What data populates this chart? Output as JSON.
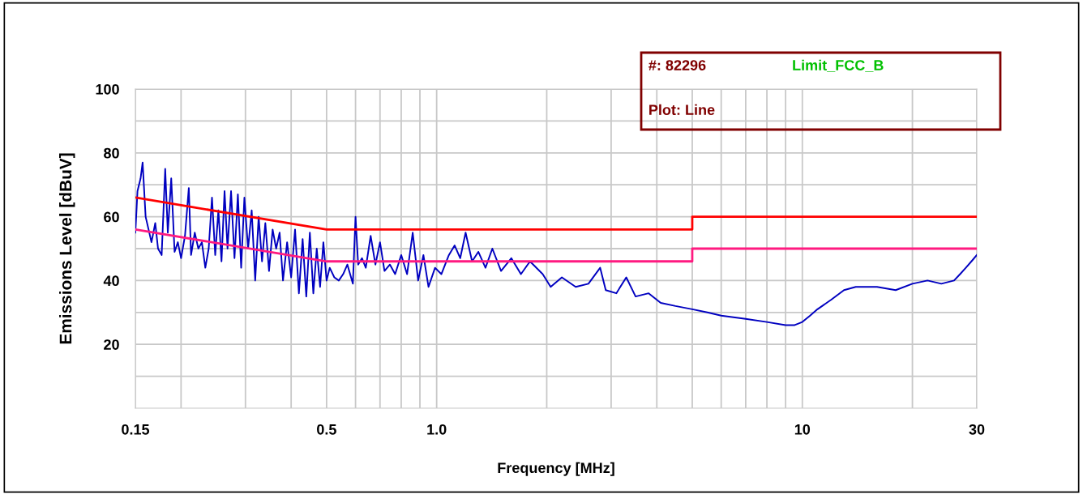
{
  "chart_data": {
    "type": "line",
    "xlabel": "Frequency [MHz]",
    "ylabel": "Emissions Level [dBuV]",
    "log": "x",
    "grid": true,
    "xlim": [
      0.15,
      30
    ],
    "ylim": [
      0,
      100
    ],
    "xticks": [
      0.15,
      {
        "value": 0.2,
        "label": null
      },
      {
        "value": 0.3,
        "label": null
      },
      {
        "value": 0.4,
        "label": null
      },
      0.5,
      {
        "value": 0.6,
        "label": null
      },
      {
        "value": 0.7,
        "label": null
      },
      {
        "value": 0.8,
        "label": null
      },
      {
        "value": 0.9,
        "label": null
      },
      {
        "value": 1,
        "label": "1.0"
      },
      {
        "value": 2,
        "label": null
      },
      {
        "value": 3,
        "label": null
      },
      {
        "value": 4,
        "label": null
      },
      {
        "value": 5,
        "label": null
      },
      {
        "value": 6,
        "label": null
      },
      {
        "value": 7,
        "label": null
      },
      {
        "value": 8,
        "label": null
      },
      {
        "value": 9,
        "label": null
      },
      10,
      {
        "value": 20,
        "label": null
      },
      30
    ],
    "yticks": [
      {
        "value": 10,
        "label": null
      },
      20,
      {
        "value": 30,
        "label": null
      },
      40,
      {
        "value": 50,
        "label": null
      },
      60,
      {
        "value": 70,
        "label": null
      },
      80,
      {
        "value": 90,
        "label": null
      },
      100
    ],
    "annotations": [
      "#: 82296",
      "Limit_FCC_B",
      "Plot: Line"
    ],
    "series": [
      {
        "color": "#0000c0",
        "x": [
          0.15,
          0.152,
          0.155,
          0.157,
          0.16,
          0.163,
          0.166,
          0.17,
          0.173,
          0.177,
          0.181,
          0.184,
          0.188,
          0.192,
          0.196,
          0.2,
          0.205,
          0.21,
          0.213,
          0.218,
          0.223,
          0.228,
          0.233,
          0.238,
          0.243,
          0.248,
          0.253,
          0.258,
          0.263,
          0.268,
          0.274,
          0.28,
          0.286,
          0.292,
          0.298,
          0.305,
          0.312,
          0.319,
          0.326,
          0.333,
          0.34,
          0.348,
          0.356,
          0.364,
          0.372,
          0.38,
          0.39,
          0.4,
          0.41,
          0.42,
          0.43,
          0.44,
          0.45,
          0.46,
          0.47,
          0.48,
          0.49,
          0.5,
          0.51,
          0.525,
          0.54,
          0.555,
          0.57,
          0.59,
          0.6,
          0.61,
          0.625,
          0.64,
          0.66,
          0.68,
          0.7,
          0.72,
          0.745,
          0.77,
          0.8,
          0.83,
          0.86,
          0.89,
          0.92,
          0.95,
          0.99,
          1.03,
          1.08,
          1.12,
          1.16,
          1.2,
          1.25,
          1.3,
          1.36,
          1.42,
          1.5,
          1.6,
          1.7,
          1.8,
          1.95,
          2.05,
          2.2,
          2.4,
          2.6,
          2.8,
          2.9,
          3.1,
          3.3,
          3.5,
          3.8,
          4.1,
          4.5,
          5.0,
          5.5,
          6.0,
          7.0,
          8.0,
          9.0,
          9.5,
          10.0,
          10.5,
          11.0,
          12.0,
          13.0,
          14.0,
          16,
          18,
          20,
          22,
          24,
          26,
          27,
          28,
          29,
          30
        ],
        "values": [
          55,
          68,
          72,
          77,
          60,
          56,
          52,
          58,
          50,
          48,
          75,
          55,
          72,
          49,
          52,
          47,
          54,
          69,
          48,
          55,
          50,
          52,
          44,
          50,
          66,
          48,
          62,
          46,
          68,
          50,
          68,
          47,
          67,
          44,
          66,
          50,
          62,
          40,
          60,
          46,
          58,
          43,
          56,
          50,
          55,
          40,
          52,
          41,
          56,
          36,
          53,
          35,
          55,
          36,
          50,
          38,
          52,
          40,
          44,
          41,
          40,
          42,
          45,
          39,
          60,
          45,
          47,
          44,
          54,
          45,
          52,
          43,
          45,
          42,
          48,
          42,
          55,
          40,
          48,
          38,
          44,
          42,
          48,
          51,
          47,
          55,
          46,
          49,
          44,
          50,
          43,
          47,
          42,
          46,
          42,
          38,
          41,
          38,
          39,
          44,
          37,
          36,
          41,
          35,
          36,
          33,
          32,
          31,
          30,
          29,
          28,
          27,
          26,
          26,
          27,
          29,
          31,
          34,
          37,
          38,
          38,
          37,
          39,
          40,
          39,
          40,
          42,
          44,
          46,
          48
        ]
      },
      {
        "color": "#ff0000",
        "x": [
          0.15,
          0.5,
          5,
          5,
          30
        ],
        "values": [
          66,
          56,
          56,
          60,
          60
        ]
      },
      {
        "color": "#ff1a80",
        "x": [
          0.15,
          0.5,
          5,
          5,
          30
        ],
        "values": [
          56,
          46,
          46,
          50,
          50
        ]
      }
    ]
  }
}
